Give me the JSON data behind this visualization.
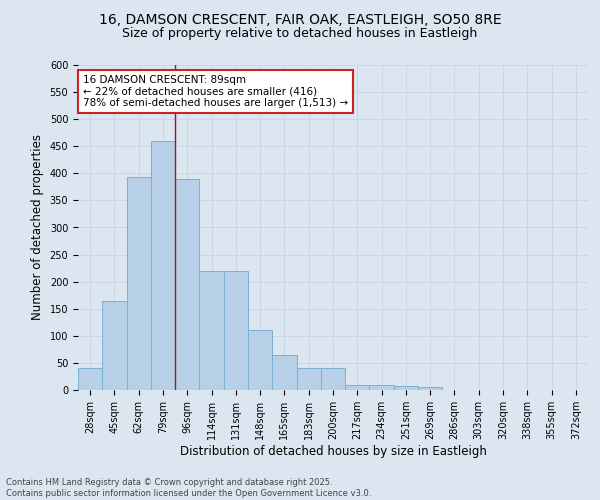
{
  "title_line1": "16, DAMSON CRESCENT, FAIR OAK, EASTLEIGH, SO50 8RE",
  "title_line2": "Size of property relative to detached houses in Eastleigh",
  "xlabel": "Distribution of detached houses by size in Eastleigh",
  "ylabel": "Number of detached properties",
  "categories": [
    "28sqm",
    "45sqm",
    "62sqm",
    "79sqm",
    "96sqm",
    "114sqm",
    "131sqm",
    "148sqm",
    "165sqm",
    "183sqm",
    "200sqm",
    "217sqm",
    "234sqm",
    "251sqm",
    "269sqm",
    "286sqm",
    "303sqm",
    "320sqm",
    "338sqm",
    "355sqm",
    "372sqm"
  ],
  "values": [
    40,
    165,
    393,
    460,
    390,
    220,
    220,
    110,
    65,
    40,
    40,
    10,
    10,
    8,
    5,
    0,
    0,
    0,
    0,
    0,
    0
  ],
  "bar_color": "#b8cfe8",
  "bar_edge_color": "#7aafd4",
  "grid_color": "#c8d4e4",
  "background_color": "#dce6f0",
  "vline_color": "#aa1111",
  "annotation_text": "16 DAMSON CRESCENT: 89sqm\n← 22% of detached houses are smaller (416)\n78% of semi-detached houses are larger (1,513) →",
  "annotation_box_color": "#ffffff",
  "annotation_box_edge": "#cc2222",
  "ylim": [
    0,
    600
  ],
  "yticks": [
    0,
    50,
    100,
    150,
    200,
    250,
    300,
    350,
    400,
    450,
    500,
    550,
    600
  ],
  "footer_text": "Contains HM Land Registry data © Crown copyright and database right 2025.\nContains public sector information licensed under the Open Government Licence v3.0.",
  "title_fontsize": 10,
  "subtitle_fontsize": 9,
  "tick_fontsize": 7,
  "label_fontsize": 8.5,
  "annotation_fontsize": 7.5
}
